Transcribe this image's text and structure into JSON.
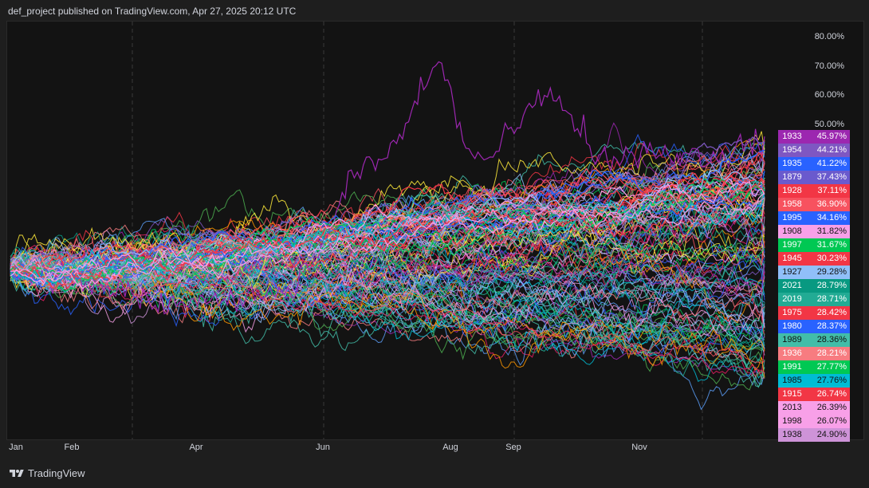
{
  "header": {
    "text": "def_project published on TradingView.com, Apr 27, 2025 20:12 UTC"
  },
  "footer": {
    "brand": "TradingView",
    "logo_icon": "tradingview-logo-icon"
  },
  "chart_data": {
    "type": "line",
    "title": "",
    "xlabel": "",
    "ylabel": "",
    "x_tick_labels": [
      "Jan",
      "Feb",
      "Apr",
      "Jun",
      "Aug",
      "Sep",
      "Nov"
    ],
    "y_tick_labels": [
      "80.00%",
      "70.00%",
      "60.00%",
      "50.00%"
    ],
    "ylim_percent": [
      -60,
      85
    ],
    "grid": "vertical dashed lines",
    "legend_placement": "right",
    "series": [
      {
        "name": "1933",
        "label": "45.97%",
        "final": 45.97,
        "color": "#9c27b0",
        "profile": "1933"
      },
      {
        "name": "1954",
        "label": "44.21%",
        "final": 44.21,
        "color": "#7e57c2"
      },
      {
        "name": "1935",
        "label": "41.22%",
        "final": 41.22,
        "color": "#2962ff"
      },
      {
        "name": "1879",
        "label": "37.43%",
        "final": 37.43,
        "color": "#6a5acd"
      },
      {
        "name": "1928",
        "label": "37.11%",
        "final": 37.11,
        "color": "#f23645"
      },
      {
        "name": "1958",
        "label": "36.90%",
        "final": 36.9,
        "color": "#f7525f"
      },
      {
        "name": "1995",
        "label": "34.16%",
        "final": 34.16,
        "color": "#2962ff"
      },
      {
        "name": "1908",
        "label": "31.82%",
        "final": 31.82,
        "color": "#f8a0e8",
        "dark_text": true
      },
      {
        "name": "1997",
        "label": "31.67%",
        "final": 31.67,
        "color": "#00c853"
      },
      {
        "name": "1945",
        "label": "30.23%",
        "final": 30.23,
        "color": "#f23645"
      },
      {
        "name": "1927",
        "label": "29.28%",
        "final": 29.28,
        "color": "#90bff9",
        "dark_text": true
      },
      {
        "name": "2021",
        "label": "28.79%",
        "final": 28.79,
        "color": "#089981"
      },
      {
        "name": "2019",
        "label": "28.71%",
        "final": 28.71,
        "color": "#22ab94"
      },
      {
        "name": "1975",
        "label": "28.42%",
        "final": 28.42,
        "color": "#f23645"
      },
      {
        "name": "1980",
        "label": "28.37%",
        "final": 28.37,
        "color": "#2962ff"
      },
      {
        "name": "1989",
        "label": "28.36%",
        "final": 28.36,
        "color": "#42bda8",
        "dark_text": true
      },
      {
        "name": "1936",
        "label": "28.21%",
        "final": 28.21,
        "color": "#f77c80"
      },
      {
        "name": "1991",
        "label": "27.77%",
        "final": 27.77,
        "color": "#00c853"
      },
      {
        "name": "1985",
        "label": "27.76%",
        "final": 27.76,
        "color": "#00bcd4",
        "dark_text": true
      },
      {
        "name": "1915",
        "label": "26.74%",
        "final": 26.74,
        "color": "#f23645"
      },
      {
        "name": "2013",
        "label": "26.39%",
        "final": 26.39,
        "color": "#f8a0e8",
        "dark_text": true
      },
      {
        "name": "1998",
        "label": "26.07%",
        "final": 26.07,
        "color": "#f8a0e8",
        "dark_text": true
      },
      {
        "name": "1938",
        "label": "24.90%",
        "final": 24.9,
        "color": "#ce93d8",
        "dark_text": true
      }
    ],
    "background_palette": [
      "#9c27b0",
      "#7e57c2",
      "#2962ff",
      "#f23645",
      "#f7525f",
      "#00c853",
      "#089981",
      "#22ab94",
      "#00bcd4",
      "#f8a0e8",
      "#ce93d8",
      "#90bff9",
      "#4caf50",
      "#ff9800",
      "#e91e63",
      "#5b9cf6",
      "#ffeb3b",
      "#f77c80",
      "#42bda8",
      "#b39ddb"
    ]
  }
}
